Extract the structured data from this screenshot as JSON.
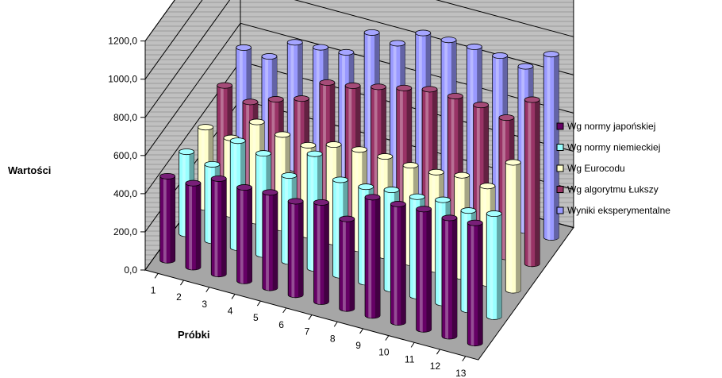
{
  "chart_data": {
    "type": "bar",
    "subtype": "3d-cylinder",
    "title": "",
    "xlabel": "Próbki",
    "ylabel": "Wartości",
    "ylim": [
      0,
      1200
    ],
    "yticks": [
      "0,0",
      "200,0",
      "400,0",
      "600,0",
      "800,0",
      "1000,0",
      "1200,0"
    ],
    "categories": [
      "1",
      "2",
      "3",
      "4",
      "5",
      "6",
      "7",
      "8",
      "9",
      "10",
      "11",
      "12",
      "13"
    ],
    "legend_position": "right",
    "gridlines": true,
    "series": [
      {
        "name": "Wg normy japońskiej",
        "color": "#660066",
        "values": [
          440,
          440,
          500,
          490,
          500,
          490,
          520,
          470,
          620,
          620,
          630,
          620,
          630
        ]
      },
      {
        "name": "Wg normy niemieckiej",
        "color": "#99ffff",
        "values": [
          430,
          400,
          560,
          530,
          450,
          600,
          500,
          500,
          520,
          520,
          540,
          520,
          540
        ]
      },
      {
        "name": "Wg Eurocodu",
        "color": "#ffffcc",
        "values": [
          420,
          400,
          520,
          490,
          470,
          510,
          520,
          520,
          510,
          510,
          530,
          510,
          670
        ]
      },
      {
        "name": "Wg algorytmu Łukszy",
        "color": "#993366",
        "values": [
          500,
          450,
          500,
          540,
          660,
          680,
          710,
          740,
          770,
          770,
          760,
          730,
          860
        ]
      },
      {
        "name": "Wyniki eksperymentalne",
        "color": "#9999ff",
        "values": [
          560,
          550,
          660,
          670,
          680,
          820,
          800,
          890,
          890,
          890,
          880,
          860,
          960
        ]
      }
    ]
  }
}
